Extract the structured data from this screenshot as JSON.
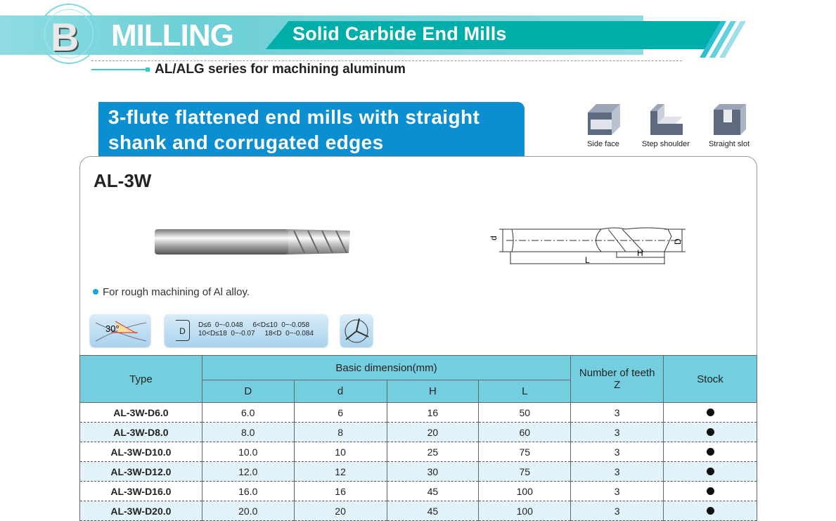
{
  "header": {
    "section_letter": "B",
    "title": "MILLING",
    "subtitle": "Solid Carbide End Mills",
    "series": "AL/ALG series for machining aluminum"
  },
  "product": {
    "heading_line1": "3-flute flattened end mills with straight",
    "heading_line2": "shank and corrugated edges",
    "model": "AL-3W",
    "feature": "For rough machining of Al alloy."
  },
  "applications": [
    {
      "label": "Side face",
      "icon": "side-face-icon"
    },
    {
      "label": "Step shoulder",
      "icon": "step-shoulder-icon"
    },
    {
      "label": "Straight slot",
      "icon": "straight-slot-icon"
    }
  ],
  "drawing_labels": {
    "d": "d",
    "D": "D",
    "H": "H",
    "L": "L"
  },
  "helix_angle": "30°",
  "tolerance": {
    "symbol": "D",
    "r1": "D≤6  0~-0.048     6<D≤10  0~-0.058",
    "r2": "10<D≤18  0~-0.07     18<D  0~-0.084"
  },
  "table": {
    "headers": {
      "type": "Type",
      "basic": "Basic dimension(mm)",
      "D": "D",
      "d": "d",
      "H": "H",
      "L": "L",
      "teeth": "Number of teeth",
      "teeth_sub": "Z",
      "stock": "Stock"
    },
    "rows": [
      {
        "type": "AL-3W-D6.0",
        "D": "6.0",
        "d": "6",
        "H": "16",
        "L": "50",
        "Z": "3",
        "stock": true
      },
      {
        "type": "AL-3W-D8.0",
        "D": "8.0",
        "d": "8",
        "H": "20",
        "L": "60",
        "Z": "3",
        "stock": true
      },
      {
        "type": "AL-3W-D10.0",
        "D": "10.0",
        "d": "10",
        "H": "25",
        "L": "75",
        "Z": "3",
        "stock": true
      },
      {
        "type": "AL-3W-D12.0",
        "D": "12.0",
        "d": "12",
        "H": "30",
        "L": "75",
        "Z": "3",
        "stock": true
      },
      {
        "type": "AL-3W-D16.0",
        "D": "16.0",
        "d": "16",
        "H": "45",
        "L": "100",
        "Z": "3",
        "stock": true
      },
      {
        "type": "AL-3W-D20.0",
        "D": "20.0",
        "d": "20",
        "H": "45",
        "L": "100",
        "Z": "3",
        "stock": true
      }
    ]
  },
  "colors": {
    "teal": "#00aea9",
    "blue_heading": "#0b8fd0",
    "table_header": "#73cfdf",
    "row_alt": "#e2f3fb"
  }
}
